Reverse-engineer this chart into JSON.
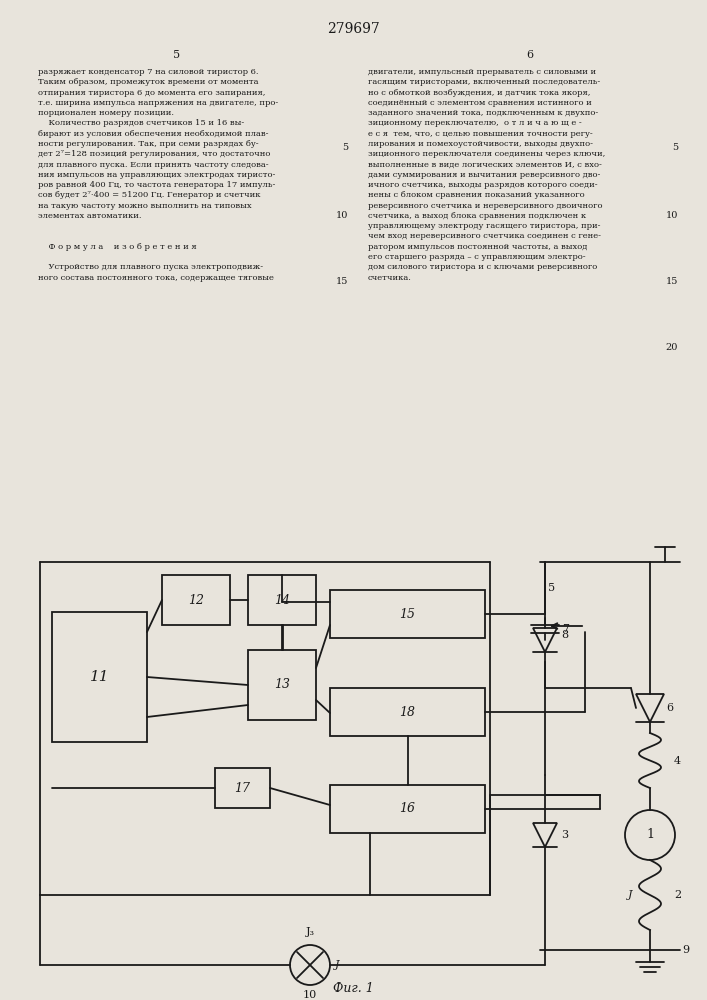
{
  "title": "279697",
  "fig_caption": "Фиг. 1",
  "bg_color": "#e8e4dc",
  "fg_color": "#1a1a1a",
  "page_text_left": "разряжает конденсатор 7 на силовой тиристор 6.\nТаким образом, промежуток времени от момента\nотпирания тиристора 6 до момента его запирания,\nт.е. ширина импульса напряжения на двигателе, про-\nпорционален номеру позиции.\n    Количество разрядов счетчиков 15 и 16 вы-\nбирают из условия обеспечения необходимой плав-\nности регулирования. Так, при семи разрядах бу-\nдет 2⁷=128 позиций регулирования, что достаточно\nдля плавного пуска. Если принять частоту следова-\nния импульсов на управляющих электродах тиристо-\nров равной 400 Гц, то частота генератора 17 импуль-\nсов будет 2⁷·400 = 51200 Гц. Генератор и счетчик\nна такую частоту можно выполнить на типовых\nэлементах автоматики.\n\n\n    Ф о р м у л а    и з о б р е т е н и я\n\n    Устройство для плавного пуска электроподвиж-\nного состава постоянного тока, содержащее тяговые",
  "page_text_right": "двигатели, импульсный прерыватель с силовыми и\nгасящим тиристорами, включенный последователь-\nно с обмоткой возбуждения, и датчик тока якоря,\nсоединённый с элементом сравнения истинного и\nзаданного значений тока, подключенным к двухпо-\nзиционному переключателю,  о т л и ч а ю щ е -\nе с я  тем, что, с целью повышения точности регу-\nлирования и помехоустойчивости, выходы двухпо-\nзиционного переключателя соединены через ключи,\nвыполненные в виде логических элементов И, с вхо-\nдами суммирования и вычитания реверсивного дво-\nичного счетчика, выходы разрядов которого соеди-\nнены с блоком сравнения показаний указанного\nреверсивного счетчика и нереверсивного двоичного\nсчетчика, а выход блока сравнения подключен к\nуправляющему электроду гасящего тиристора, при-\nчем вход нереверсивного счетчика соединен с гене-\nратором импульсов постоянной частоты, а выход\nего старшего разряда – с управляющим электро-\nдом силового тиристора и с ключами реверсивного\nсчетчика."
}
